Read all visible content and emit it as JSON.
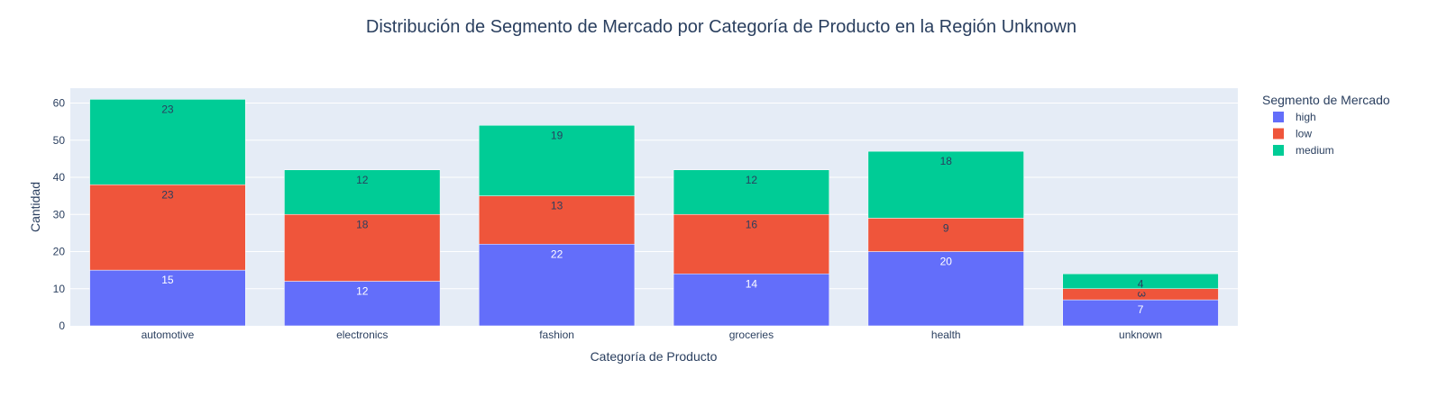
{
  "chart_data": {
    "type": "bar",
    "stacked": true,
    "title": "Distribución de Segmento de Mercado por Categoría de Producto en la Región Unknown",
    "xlabel": "Categoría de Producto",
    "ylabel": "Cantidad",
    "ylim": [
      0,
      64
    ],
    "yticks": [
      0,
      10,
      20,
      30,
      40,
      50,
      60
    ],
    "grid": true,
    "legend_title": "Segmento de Mercado",
    "legend_position": "top-right",
    "categories": [
      "automotive",
      "electronics",
      "fashion",
      "groceries",
      "health",
      "unknown"
    ],
    "series": [
      {
        "name": "high",
        "color": "#636efa",
        "label_color": "#ffffff",
        "values": [
          15,
          12,
          22,
          14,
          20,
          7
        ]
      },
      {
        "name": "low",
        "color": "#ef553b",
        "label_color": "#2a3f5f",
        "values": [
          23,
          18,
          13,
          16,
          9,
          3
        ]
      },
      {
        "name": "medium",
        "color": "#00cc96",
        "label_color": "#2a3f5f",
        "values": [
          23,
          12,
          19,
          12,
          18,
          4
        ]
      }
    ],
    "plot_bg": "#e5ecf6",
    "text_color": "#2a3f5f"
  }
}
